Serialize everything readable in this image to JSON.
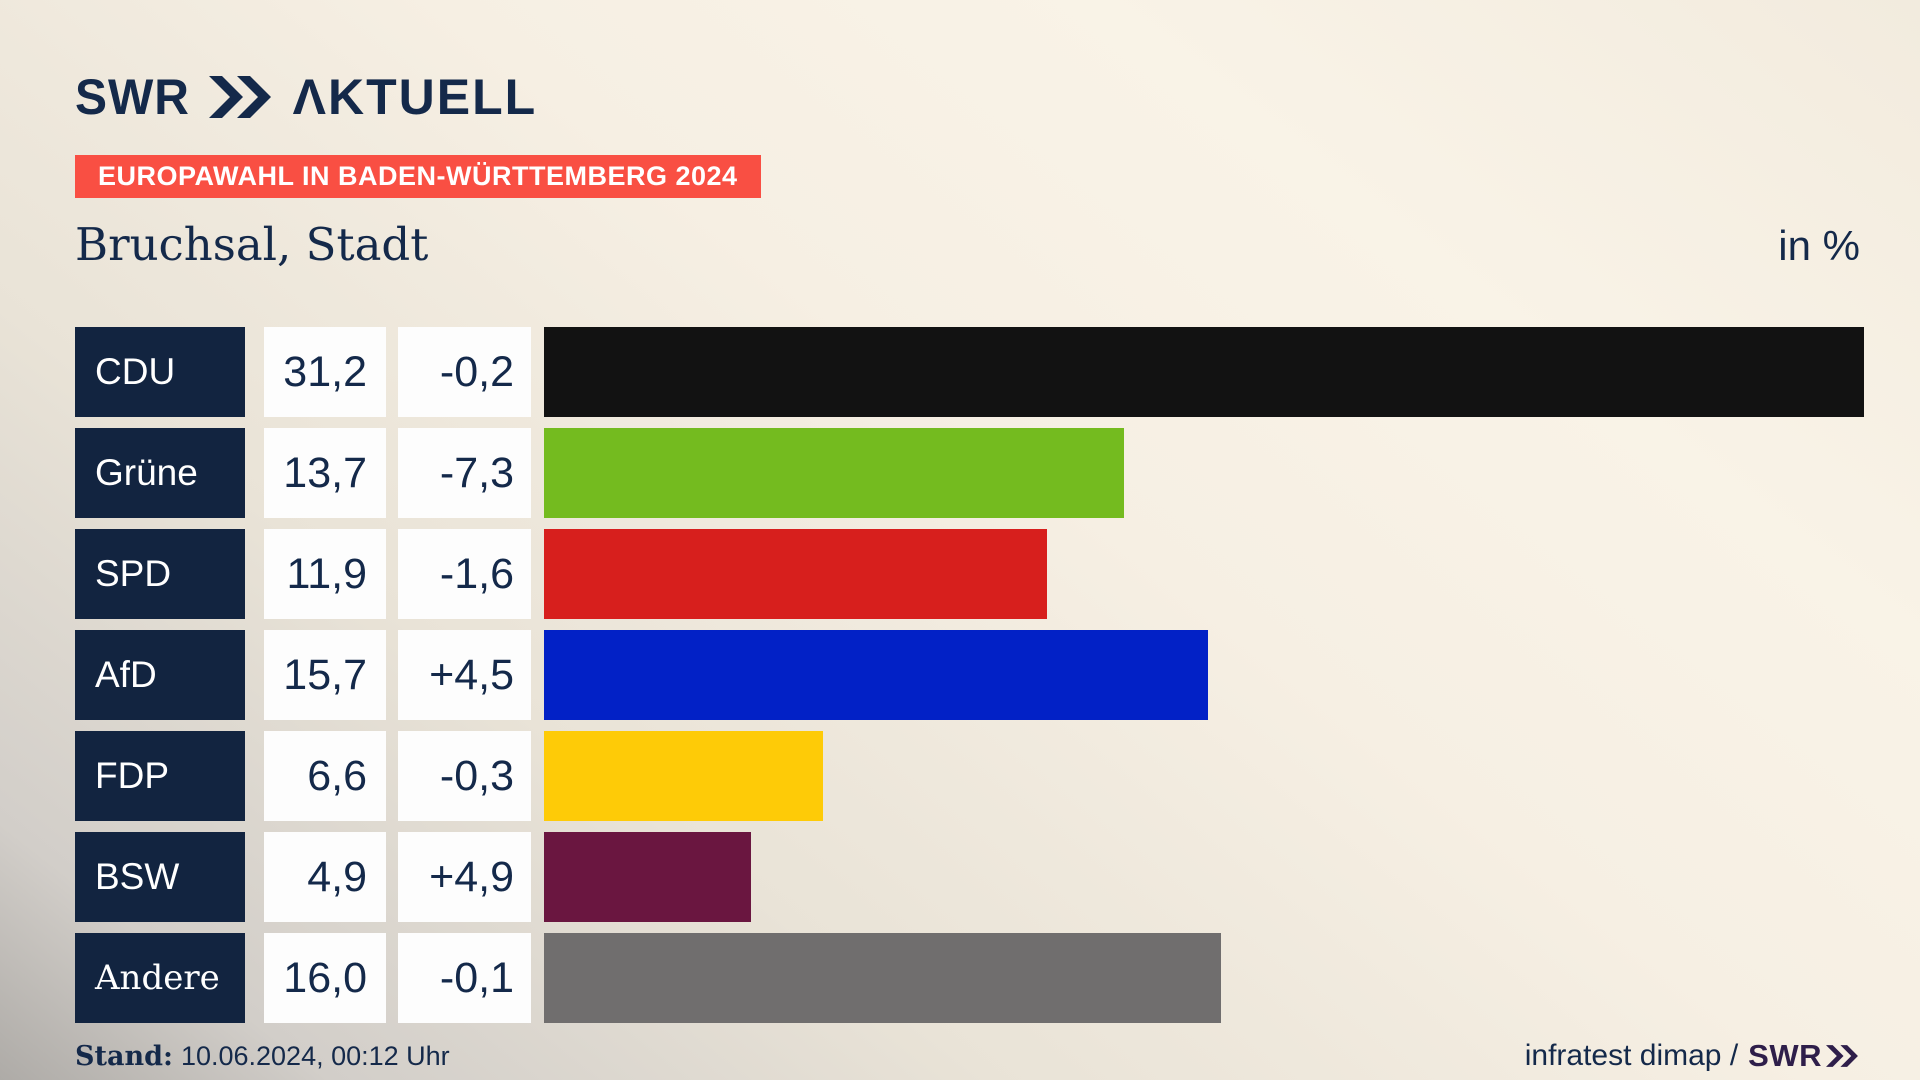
{
  "header": {
    "logo_swr": "SWR",
    "logo_aktuell": "ΛKTUELL",
    "banner": "EUROPAWAHL IN BADEN-WÜRTTEMBERG 2024"
  },
  "subheader": {
    "region": "Bruchsal, Stadt",
    "unit_label": "in %"
  },
  "chart_data": {
    "type": "bar",
    "title": "Europawahl in Baden-Württemberg 2024 — Bruchsal, Stadt",
    "unit": "in %",
    "categories": [
      "CDU",
      "Grüne",
      "SPD",
      "AfD",
      "FDP",
      "BSW",
      "Andere"
    ],
    "values": [
      31.2,
      13.7,
      11.9,
      15.7,
      6.6,
      4.9,
      16.0
    ],
    "changes": [
      -0.2,
      -7.3,
      -1.6,
      4.5,
      -0.3,
      4.9,
      -0.1
    ],
    "xlim": [
      0,
      31.2
    ],
    "orientation": "horizontal",
    "grid": false,
    "rows": [
      {
        "party": "CDU",
        "value": "31,2",
        "change": "-0,2",
        "percent": 31.2,
        "color": "#121212"
      },
      {
        "party": "Grüne",
        "value": "13,7",
        "change": "-7,3",
        "percent": 13.7,
        "color": "#74bb1f"
      },
      {
        "party": "SPD",
        "value": "11,9",
        "change": "-1,6",
        "percent": 11.9,
        "color": "#d71f1d"
      },
      {
        "party": "AfD",
        "value": "15,7",
        "change": "+4,5",
        "percent": 15.7,
        "color": "#0221c6"
      },
      {
        "party": "FDP",
        "value": "6,6",
        "change": "-0,3",
        "percent": 6.6,
        "color": "#fecb07"
      },
      {
        "party": "BSW",
        "value": "4,9",
        "change": "+4,9",
        "percent": 4.9,
        "color": "#6a1640"
      },
      {
        "party": "Andere",
        "value": "16,0",
        "change": "-0,1",
        "percent": 16.0,
        "color": "#706e6e"
      }
    ],
    "colors": {
      "label_box": "#122440",
      "value_box": "#fdfdfd",
      "text": "#14294a",
      "banner": "#f94f43"
    }
  },
  "footer": {
    "stand_label": "Stand:",
    "stand_value": "10.06.2024, 00:12 Uhr",
    "source_text": "infratest dimap /",
    "source_logo": "SWR"
  }
}
